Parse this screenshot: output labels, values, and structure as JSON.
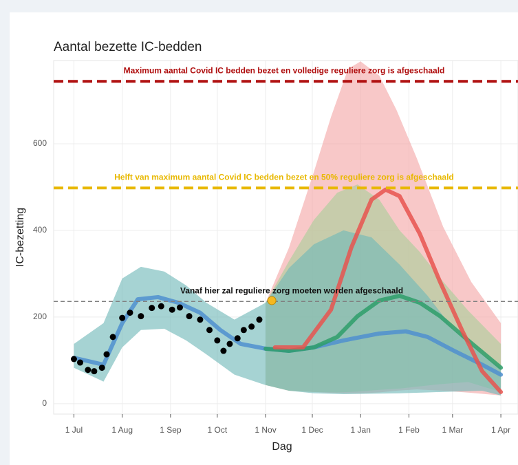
{
  "chart_data": {
    "type": "line",
    "title": "Aantal bezette IC-bedden",
    "x_label": "Dag",
    "y_label": "IC-bezetting",
    "xlim": [
      -13,
      285
    ],
    "ylim": [
      -24,
      792
    ],
    "xticks": [
      {
        "value": 0,
        "label": "1 Jul"
      },
      {
        "value": 31,
        "label": "1 Aug"
      },
      {
        "value": 62,
        "label": "1 Sep"
      },
      {
        "value": 92,
        "label": "1 Oct"
      },
      {
        "value": 123,
        "label": "1 Nov"
      },
      {
        "value": 153,
        "label": "1 Dec"
      },
      {
        "value": 184,
        "label": "1 Jan"
      },
      {
        "value": 215,
        "label": "1 Feb"
      },
      {
        "value": 243,
        "label": "1 Mar"
      },
      {
        "value": 274,
        "label": "1 Apr"
      }
    ],
    "yticks": [
      0,
      200,
      400,
      600
    ],
    "grid": true,
    "bands": [
      {
        "color": "#f4a6a6",
        "x": [
          123,
          138,
          154,
          165,
          176,
          184,
          196,
          207,
          220,
          237,
          255,
          274
        ],
        "upper": [
          233,
          360,
          535,
          662,
          773,
          790,
          757,
          678,
          567,
          408,
          281,
          186
        ],
        "lower": [
          43,
          30,
          27,
          25,
          24,
          24,
          26,
          30,
          33,
          30,
          25,
          19
        ]
      },
      {
        "color": "#a9cf9a",
        "x": [
          123,
          138,
          154,
          169,
          182,
          196,
          209,
          222,
          235,
          253,
          274
        ],
        "upper": [
          233,
          329,
          424,
          487,
          506,
          471,
          400,
          350,
          290,
          215,
          138
        ],
        "lower": [
          43,
          30,
          27,
          26,
          28,
          32,
          35,
          40,
          45,
          50,
          27
        ]
      },
      {
        "color": "#6fb8b8",
        "x": [
          0,
          19,
          31,
          43,
          58,
          72,
          85,
          103,
          123,
          138,
          154,
          173,
          191,
          209,
          227,
          244,
          262,
          274
        ],
        "upper": [
          138,
          186,
          289,
          316,
          305,
          273,
          233,
          194,
          233,
          313,
          368,
          400,
          384,
          321,
          249,
          170,
          114,
          83
        ],
        "lower": [
          83,
          51,
          130,
          170,
          173,
          146,
          114,
          67,
          43,
          30,
          24,
          22,
          23,
          24,
          26,
          28,
          30,
          19
        ]
      }
    ],
    "series": [
      {
        "color": "#4f8fcf",
        "x": [
          0,
          19,
          31,
          41,
          54,
          67,
          81,
          94,
          107,
          123,
          138,
          154,
          173,
          196,
          213,
          227,
          244,
          262,
          274
        ],
        "values": [
          106,
          90,
          186,
          241,
          246,
          233,
          210,
          170,
          138,
          127,
          122,
          130,
          146,
          162,
          167,
          154,
          122,
          90,
          67
        ]
      },
      {
        "color": "#2e9e6a",
        "x": [
          123,
          138,
          154,
          169,
          182,
          196,
          209,
          222,
          235,
          253,
          274
        ],
        "values": [
          127,
          122,
          130,
          154,
          202,
          238,
          249,
          233,
          202,
          146,
          83
        ]
      },
      {
        "color": "#e8534f",
        "x": [
          129,
          147,
          165,
          178,
          191,
          200,
          209,
          222,
          235,
          249,
          262,
          274
        ],
        "values": [
          130,
          130,
          217,
          360,
          471,
          494,
          479,
          392,
          281,
          170,
          75,
          27
        ]
      }
    ],
    "observed": {
      "color": "#000000",
      "x": [
        0,
        4,
        9,
        13,
        18,
        21,
        25,
        31,
        36,
        43,
        50,
        56,
        63,
        68,
        74,
        81,
        87,
        92,
        96,
        100,
        105,
        109,
        114,
        119
      ],
      "values": [
        103,
        95,
        78,
        75,
        83,
        114,
        154,
        198,
        210,
        202,
        221,
        225,
        217,
        222,
        202,
        194,
        170,
        146,
        122,
        138,
        151,
        170,
        178,
        194
      ]
    },
    "hlines": [
      {
        "value": 744,
        "label": "Maximum aantal Covid IC bedden bezet en volledige reguliere zorg is afgeschaald",
        "color": "#b01010",
        "width": 4
      },
      {
        "value": 498,
        "label": "Helft van maximum aantal Covid IC bedden bezet en 50% reguliere zorg is afgeschaald",
        "color": "#e8b800",
        "width": 4
      },
      {
        "value": 236,
        "label": "Vanaf hier zal reguliere zorg moeten worden afgeschaald",
        "color": "#808080",
        "width": 1.5
      }
    ],
    "marker": {
      "x": 127,
      "value": 238,
      "color": "#f5b820"
    }
  }
}
